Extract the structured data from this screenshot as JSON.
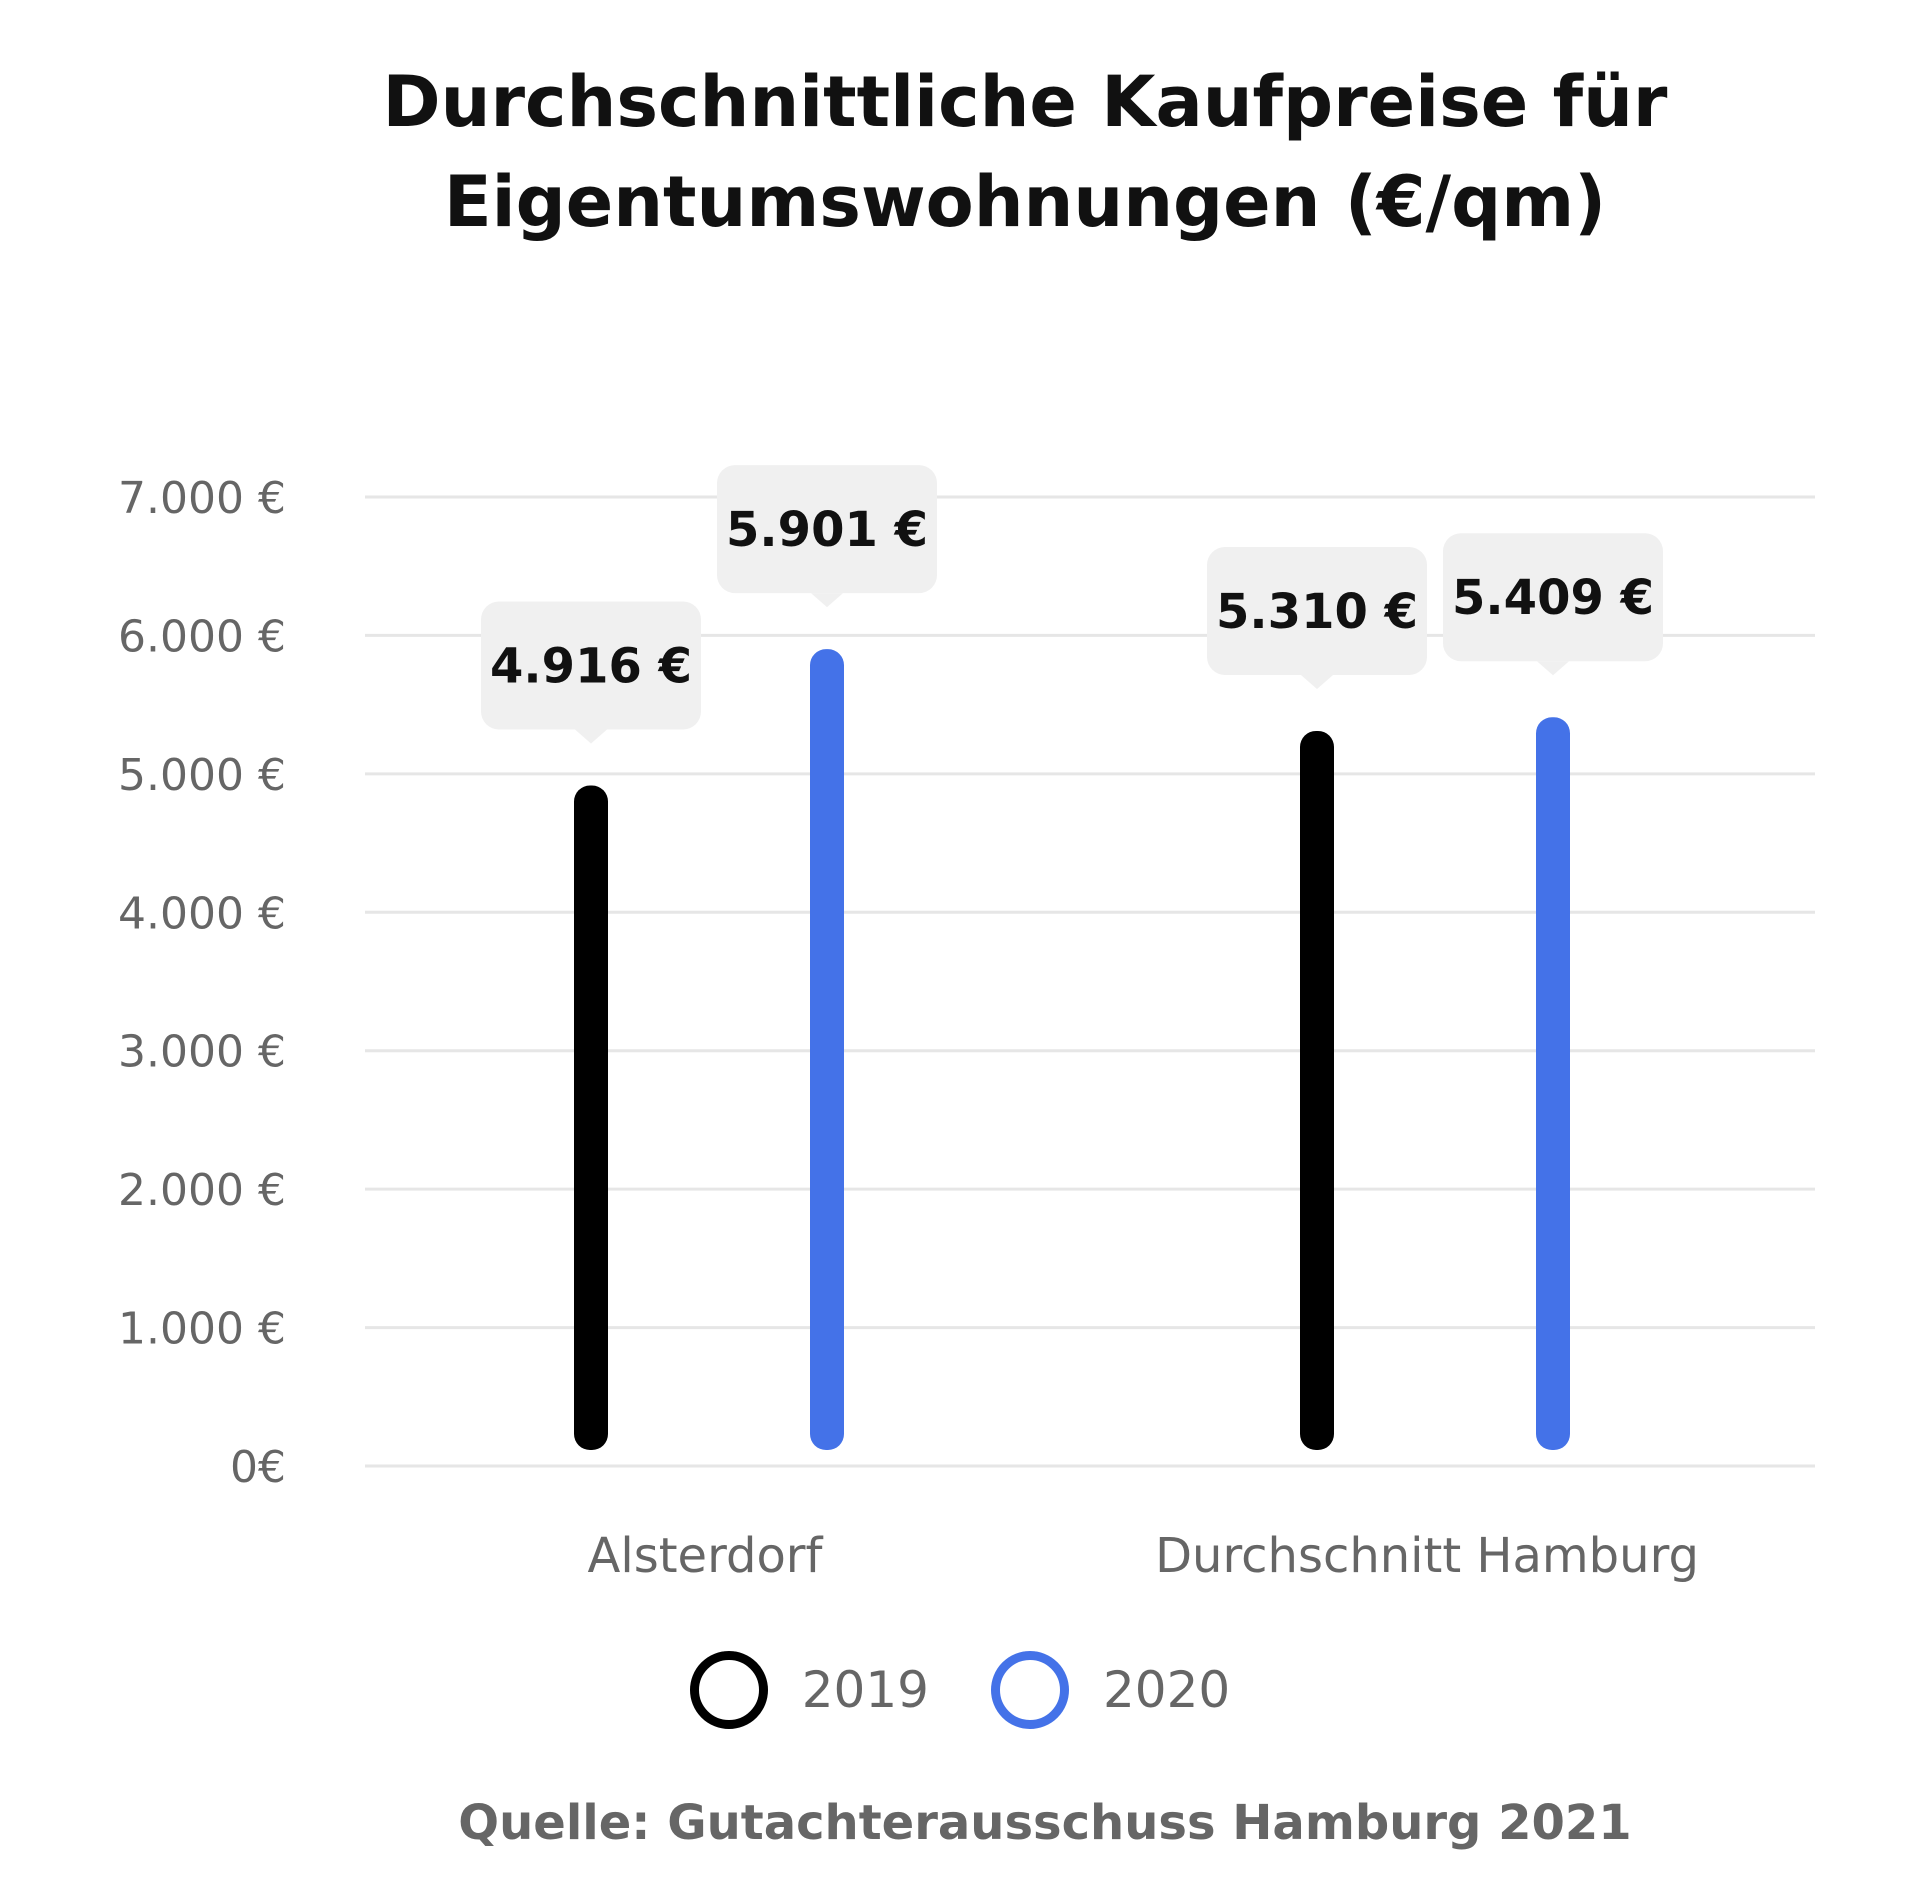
{
  "chart_data": {
    "type": "bar",
    "title": "Durchschnittliche Kaufpreise für Eigentumswohnungen (€/qm)",
    "categories": [
      "Alsterdorf",
      "Durchschnitt Hamburg"
    ],
    "series": [
      {
        "name": "2019",
        "color": "#000000",
        "values": [
          4916,
          5310
        ],
        "labels": [
          "4.916 €",
          "5.310 €"
        ]
      },
      {
        "name": "2020",
        "color": "#4472e8",
        "values": [
          5901,
          5409
        ],
        "labels": [
          "5.901 €",
          "5.409 €"
        ]
      }
    ],
    "yticks": [
      {
        "value": 7000,
        "label": "7.000 €"
      },
      {
        "value": 6000,
        "label": "6.000 €"
      },
      {
        "value": 5000,
        "label": "5.000 €"
      },
      {
        "value": 4000,
        "label": "4.000 €"
      },
      {
        "value": 3000,
        "label": "3.000 €"
      },
      {
        "value": 2000,
        "label": "2.000 €"
      },
      {
        "value": 1000,
        "label": "1.000 €"
      },
      {
        "value": 0,
        "label": "0€"
      }
    ],
    "ylim": [
      0,
      7000
    ],
    "grid": true,
    "legend_position": "bottom",
    "source": "Quelle: Gutachterausschuss Hamburg 2021"
  }
}
